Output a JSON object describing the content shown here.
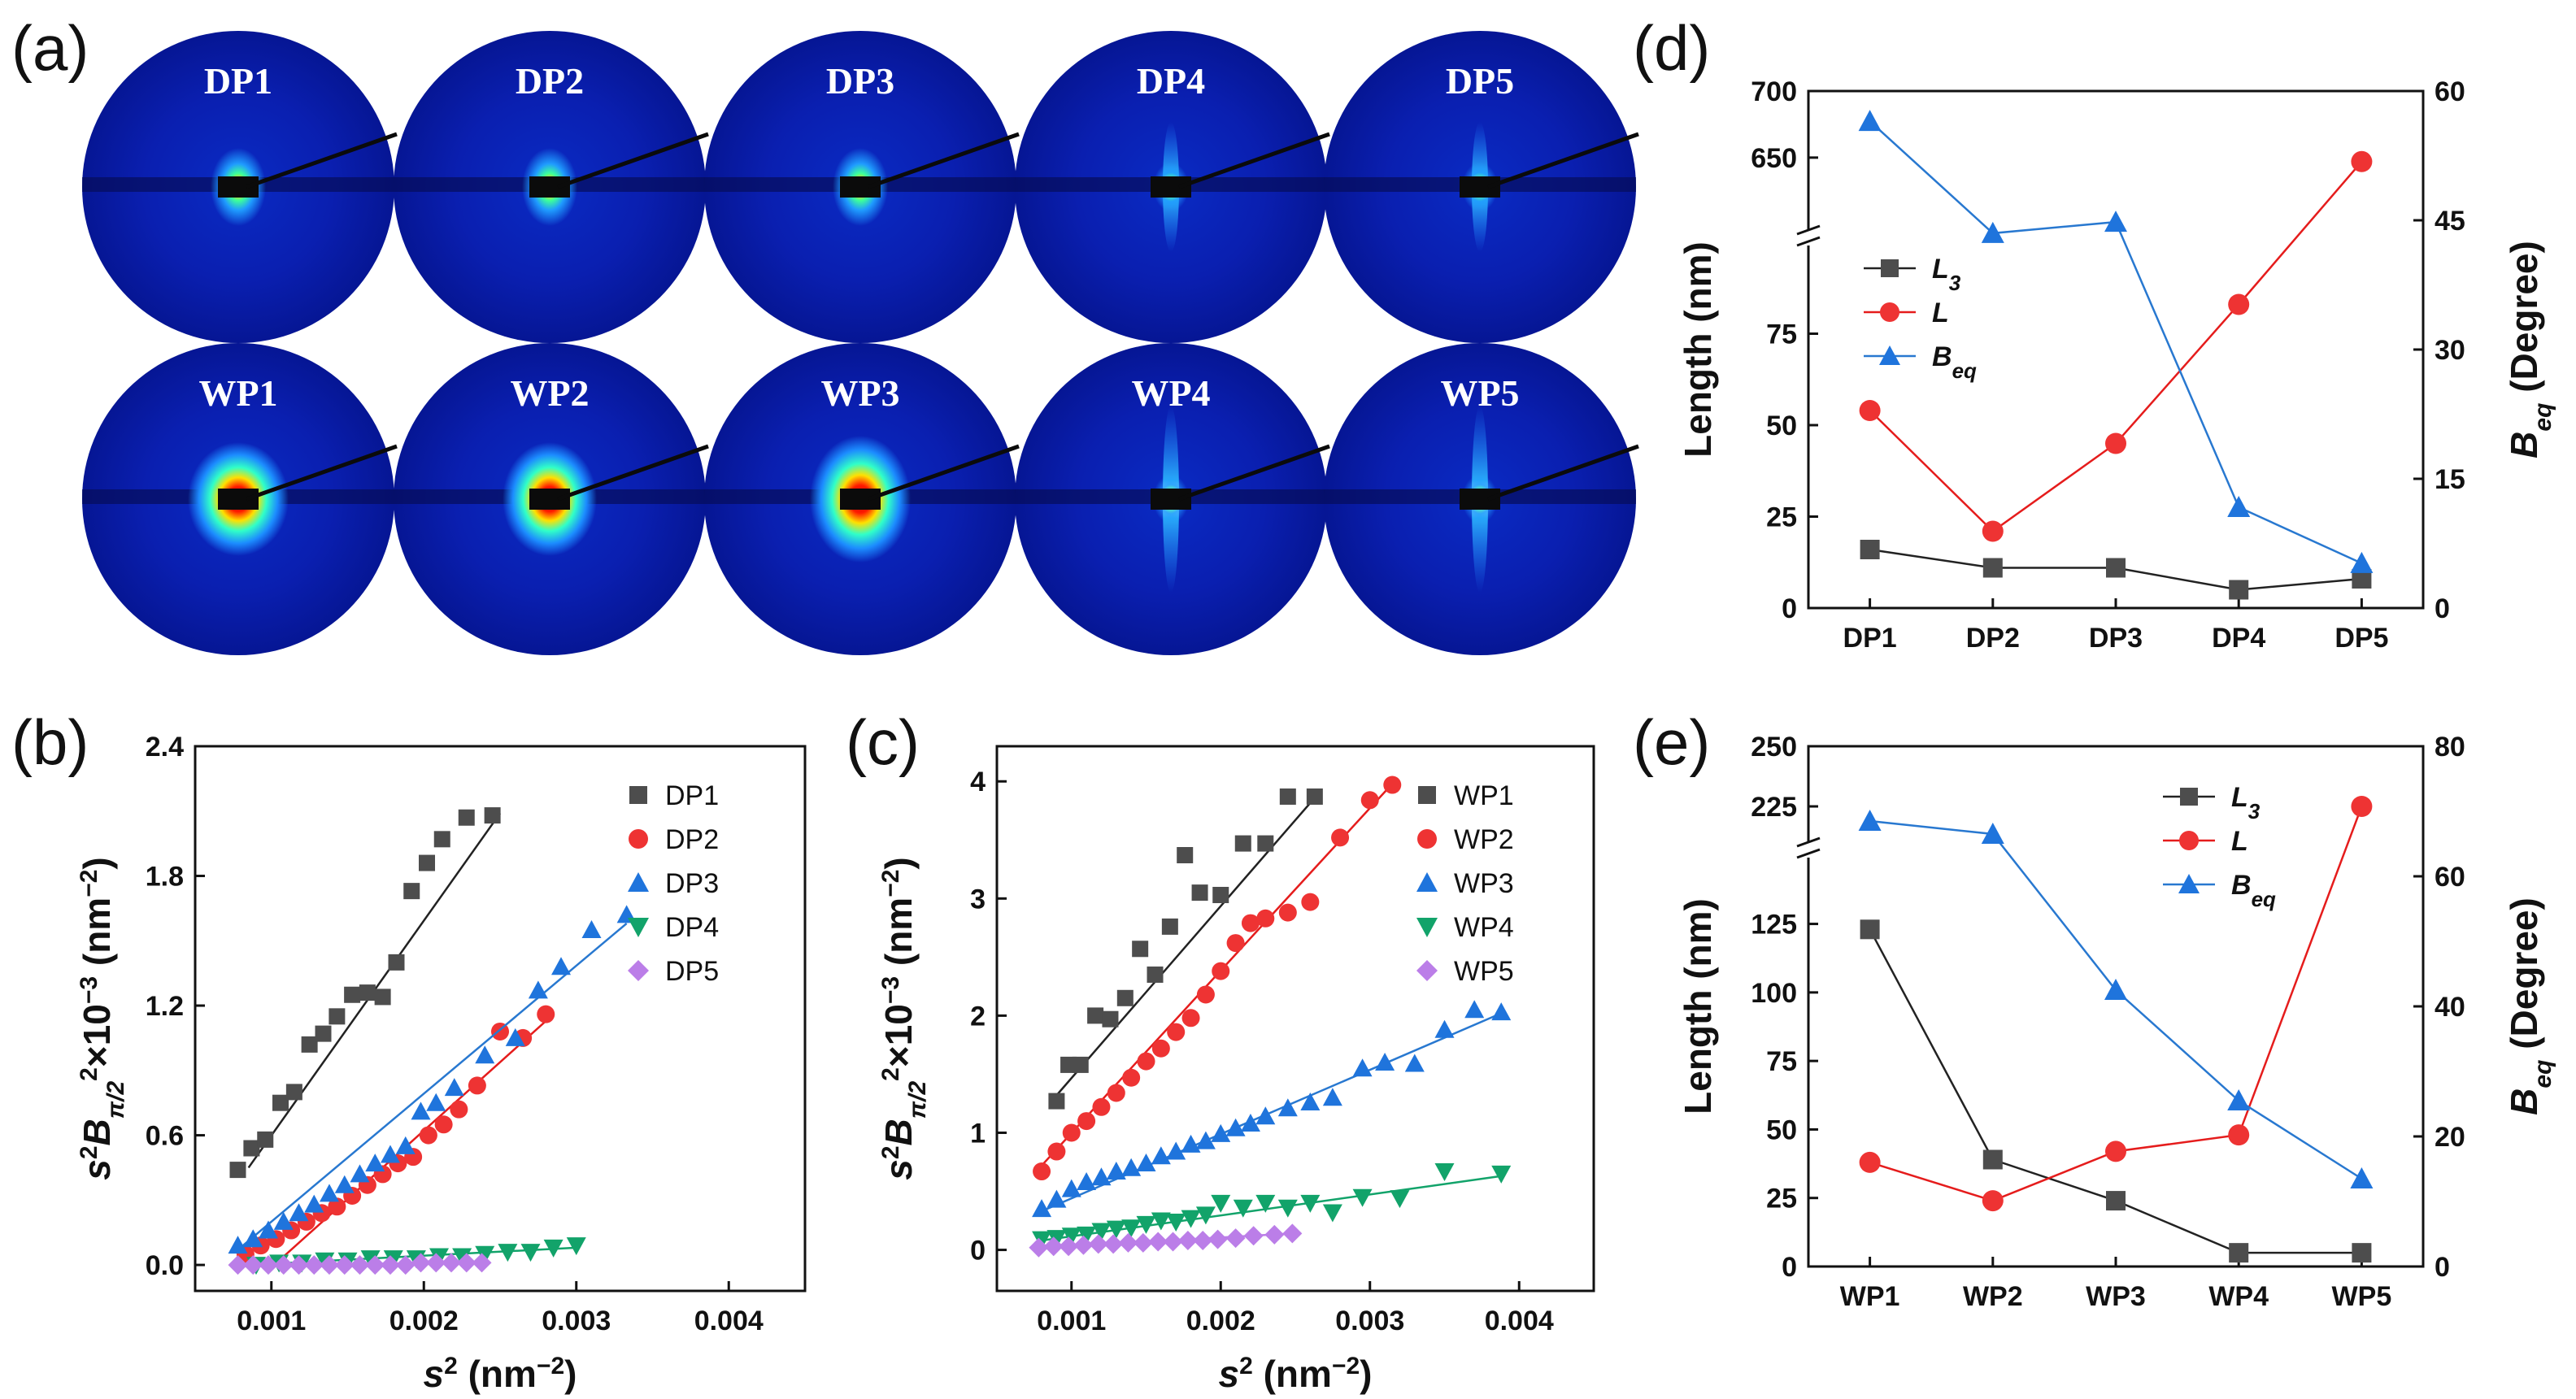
{
  "panel_labels": [
    "(a)",
    "(b)",
    "(c)",
    "(d)",
    "(e)"
  ],
  "colors": {
    "black": "#4d4d4d",
    "red": "#ee3333",
    "blue": "#1f74dc",
    "green": "#12a36a",
    "purple": "#bb7ee8",
    "line_black": "#222222",
    "line_red": "#e51c1c",
    "line_blue": "#2878d0"
  },
  "saxs": {
    "row1": [
      "DP1",
      "DP2",
      "DP3",
      "DP4",
      "DP5"
    ],
    "row2": [
      "WP1",
      "WP2",
      "WP3",
      "WP4",
      "WP5"
    ]
  },
  "chart_data": [
    {
      "id": "b",
      "type": "scatter",
      "xlabel": "s2 (nm-2)",
      "ylabel": "s2Bπ/22×10-3 (nm-2)",
      "xlim": [
        0.0005,
        0.0045
      ],
      "ylim": [
        -0.12,
        2.4
      ],
      "xticks": [
        "0.001",
        "0.002",
        "0.003",
        "0.004"
      ],
      "xtick_values": [
        0.001,
        0.002,
        0.003,
        0.004
      ],
      "yticks": [
        "0.0",
        "0.6",
        "1.2",
        "1.8",
        "2.4"
      ],
      "ytick_values": [
        0.0,
        0.6,
        1.2,
        1.8,
        2.4
      ],
      "legend_position": "top-right",
      "series": [
        {
          "name": "DP1",
          "marker": "square",
          "color": "black",
          "x": [
            0.00078,
            0.00087,
            0.00096,
            0.00106,
            0.00115,
            0.00125,
            0.00134,
            0.00143,
            0.00153,
            0.00163,
            0.00173,
            0.00182,
            0.00192,
            0.00202,
            0.00212,
            0.00228,
            0.00245
          ],
          "y": [
            0.44,
            0.54,
            0.58,
            0.75,
            0.8,
            1.02,
            1.07,
            1.15,
            1.25,
            1.26,
            1.24,
            1.4,
            1.73,
            1.86,
            1.97,
            2.07,
            2.08
          ],
          "fit": [
            [
              0.00085,
              0.45
            ],
            [
              0.0025,
              2.09
            ]
          ]
        },
        {
          "name": "DP2",
          "marker": "circle",
          "color": "red",
          "x": [
            0.00083,
            0.00093,
            0.00103,
            0.00113,
            0.00123,
            0.00133,
            0.00143,
            0.00153,
            0.00163,
            0.00173,
            0.00183,
            0.00193,
            0.00203,
            0.00213,
            0.00223,
            0.00235,
            0.0025,
            0.00265,
            0.0028
          ],
          "y": [
            0.05,
            0.09,
            0.12,
            0.16,
            0.2,
            0.24,
            0.27,
            0.32,
            0.37,
            0.42,
            0.47,
            0.5,
            0.6,
            0.65,
            0.72,
            0.83,
            1.08,
            1.05,
            1.16
          ],
          "fit": [
            [
              0.00105,
              0.02
            ],
            [
              0.00285,
              1.16
            ]
          ]
        },
        {
          "name": "DP3",
          "marker": "triangle",
          "color": "blue",
          "x": [
            0.00078,
            0.00088,
            0.00098,
            0.00108,
            0.00118,
            0.00128,
            0.00138,
            0.00148,
            0.00158,
            0.00168,
            0.00178,
            0.00188,
            0.00198,
            0.00208,
            0.0022,
            0.0024,
            0.0026,
            0.00275,
            0.0029,
            0.0031,
            0.00333
          ],
          "y": [
            0.09,
            0.12,
            0.16,
            0.2,
            0.24,
            0.28,
            0.33,
            0.37,
            0.42,
            0.47,
            0.51,
            0.55,
            0.71,
            0.75,
            0.82,
            0.97,
            1.05,
            1.27,
            1.38,
            1.55,
            1.62
          ],
          "fit": [
            [
              0.00078,
              0.07
            ],
            [
              0.00333,
              1.58
            ]
          ]
        },
        {
          "name": "DP4",
          "marker": "triangle-down",
          "color": "green",
          "x": [
            0.0009,
            0.00105,
            0.0012,
            0.00135,
            0.0015,
            0.00165,
            0.0018,
            0.00195,
            0.0021,
            0.00225,
            0.0024,
            0.00255,
            0.0027,
            0.00285,
            0.003
          ],
          "y": [
            0.0,
            0.01,
            0.01,
            0.02,
            0.02,
            0.03,
            0.03,
            0.03,
            0.04,
            0.04,
            0.05,
            0.06,
            0.06,
            0.08,
            0.09
          ],
          "fit": [
            [
              0.00085,
              0.0
            ],
            [
              0.003,
              0.08
            ]
          ]
        },
        {
          "name": "DP5",
          "marker": "diamond",
          "color": "purple",
          "x": [
            0.00078,
            0.00088,
            0.00098,
            0.00108,
            0.00118,
            0.00128,
            0.00138,
            0.00148,
            0.00158,
            0.00168,
            0.00178,
            0.00188,
            0.00198,
            0.00208,
            0.00218,
            0.00228,
            0.00238
          ],
          "y": [
            0.0,
            0.0,
            0.0,
            0.0,
            0.0,
            0.0,
            0.0,
            0.0,
            0.0,
            0.0,
            0.0,
            0.0,
            0.01,
            0.01,
            0.01,
            0.01,
            0.01
          ],
          "fit": [
            [
              0.00078,
              0.0
            ],
            [
              0.00238,
              0.01
            ]
          ]
        }
      ]
    },
    {
      "id": "c",
      "type": "scatter",
      "xlabel": "s2 (nm-2)",
      "ylabel": "s2Bπ/22×10-3 (nm-2)",
      "xlim": [
        0.0005,
        0.0045
      ],
      "ylim": [
        -0.35,
        4.3
      ],
      "xticks": [
        "0.001",
        "0.002",
        "0.003",
        "0.004"
      ],
      "xtick_values": [
        0.001,
        0.002,
        0.003,
        0.004
      ],
      "yticks": [
        "0",
        "1",
        "2",
        "3",
        "4"
      ],
      "ytick_values": [
        0,
        1,
        2,
        3,
        4
      ],
      "legend_position": "top-right",
      "series": [
        {
          "name": "WP1",
          "marker": "square",
          "color": "black",
          "x": [
            0.0009,
            0.00098,
            0.00106,
            0.00116,
            0.00126,
            0.00136,
            0.00146,
            0.00156,
            0.00166,
            0.00176,
            0.00186,
            0.002,
            0.00215,
            0.0023,
            0.00245,
            0.00263
          ],
          "y": [
            1.27,
            1.58,
            1.58,
            2.0,
            1.97,
            2.15,
            2.57,
            2.35,
            2.76,
            3.37,
            3.05,
            3.03,
            3.47,
            3.47,
            3.87,
            3.87
          ],
          "fit": [
            [
              0.0009,
              1.32
            ],
            [
              0.00263,
              3.86
            ]
          ]
        },
        {
          "name": "WP2",
          "marker": "circle",
          "color": "red",
          "x": [
            0.0008,
            0.0009,
            0.001,
            0.0011,
            0.0012,
            0.0013,
            0.0014,
            0.0015,
            0.0016,
            0.0017,
            0.0018,
            0.0019,
            0.002,
            0.0021,
            0.0022,
            0.0023,
            0.00245,
            0.0026,
            0.0028,
            0.003,
            0.00315
          ],
          "y": [
            0.67,
            0.84,
            1.0,
            1.1,
            1.22,
            1.34,
            1.47,
            1.61,
            1.72,
            1.86,
            1.98,
            2.18,
            2.38,
            2.62,
            2.79,
            2.83,
            2.88,
            2.97,
            3.52,
            3.84,
            3.97
          ],
          "fit": [
            [
              0.0008,
              0.72
            ],
            [
              0.00315,
              3.98
            ]
          ]
        },
        {
          "name": "WP3",
          "marker": "triangle",
          "color": "blue",
          "x": [
            0.0008,
            0.0009,
            0.001,
            0.0011,
            0.0012,
            0.0013,
            0.0014,
            0.0015,
            0.0016,
            0.0017,
            0.0018,
            0.0019,
            0.002,
            0.0021,
            0.0022,
            0.0023,
            0.00245,
            0.0026,
            0.00275,
            0.00295,
            0.0031,
            0.0033,
            0.0035,
            0.0037,
            0.00388
          ],
          "y": [
            0.35,
            0.43,
            0.52,
            0.58,
            0.62,
            0.67,
            0.7,
            0.74,
            0.8,
            0.84,
            0.9,
            0.93,
            0.99,
            1.04,
            1.08,
            1.14,
            1.21,
            1.26,
            1.3,
            1.55,
            1.6,
            1.59,
            1.88,
            2.05,
            2.03
          ],
          "fit": [
            [
              0.0008,
              0.33
            ],
            [
              0.00388,
              2.02
            ]
          ]
        },
        {
          "name": "WP4",
          "marker": "triangle-down",
          "color": "green",
          "x": [
            0.0008,
            0.0009,
            0.001,
            0.0011,
            0.0012,
            0.0013,
            0.0014,
            0.0015,
            0.0016,
            0.0017,
            0.0018,
            0.0019,
            0.002,
            0.00215,
            0.0023,
            0.00245,
            0.0026,
            0.00275,
            0.00295,
            0.0032,
            0.0035,
            0.00388
          ],
          "y": [
            0.09,
            0.1,
            0.12,
            0.13,
            0.16,
            0.18,
            0.19,
            0.22,
            0.25,
            0.24,
            0.27,
            0.3,
            0.4,
            0.36,
            0.4,
            0.36,
            0.4,
            0.32,
            0.45,
            0.44,
            0.67,
            0.65
          ],
          "fit": [
            [
              0.0008,
              0.08
            ],
            [
              0.00388,
              0.63
            ]
          ]
        },
        {
          "name": "WP5",
          "marker": "diamond",
          "color": "purple",
          "x": [
            0.00078,
            0.00088,
            0.00098,
            0.00108,
            0.00118,
            0.00128,
            0.00138,
            0.00148,
            0.00158,
            0.00168,
            0.00178,
            0.00188,
            0.00198,
            0.0021,
            0.00222,
            0.00236,
            0.00248
          ],
          "y": [
            0.02,
            0.03,
            0.03,
            0.04,
            0.05,
            0.05,
            0.06,
            0.06,
            0.07,
            0.07,
            0.08,
            0.08,
            0.09,
            0.1,
            0.12,
            0.13,
            0.14
          ],
          "fit": [
            [
              0.00078,
              0.02
            ],
            [
              0.00248,
              0.14
            ]
          ]
        }
      ]
    },
    {
      "id": "d",
      "type": "line",
      "categories": [
        "DP1",
        "DP2",
        "DP3",
        "DP4",
        "DP5"
      ],
      "ylabel": "Length (nm)",
      "y2label": "Beq (Degree)",
      "ylim_lower": [
        0,
        100
      ],
      "ylim_upper": [
        620,
        700
      ],
      "yticks_left": [
        "0",
        "25",
        "50",
        "75",
        "650",
        "700"
      ],
      "ytick_values_left": [
        0,
        25,
        50,
        75,
        650,
        700
      ],
      "y2lim": [
        0,
        60
      ],
      "yticks_right": [
        "0",
        "15",
        "30",
        "45",
        "60"
      ],
      "ytick_values_right": [
        0,
        15,
        30,
        45,
        60
      ],
      "legend_position": "center-left",
      "series": [
        {
          "name": "L3",
          "axis": "left",
          "marker": "square",
          "color": "black",
          "values": [
            16,
            11,
            11,
            5,
            8
          ]
        },
        {
          "name": "L",
          "axis": "left",
          "marker": "circle",
          "color": "red",
          "values": [
            54,
            21,
            45,
            83,
            647
          ]
        },
        {
          "name": "Beq",
          "axis": "right",
          "marker": "triangle",
          "color": "blue",
          "values": [
            56.5,
            43.5,
            44.8,
            11.7,
            5.2
          ]
        }
      ]
    },
    {
      "id": "e",
      "type": "line",
      "categories": [
        "WP1",
        "WP2",
        "WP3",
        "WP4",
        "WP5"
      ],
      "ylabel": "Length (nm)",
      "y2label": "Beq (Degree)",
      "ylim_lower": [
        0,
        140
      ],
      "ylim_upper": [
        200,
        250
      ],
      "yticks_left": [
        "0",
        "25",
        "50",
        "75",
        "100",
        "125",
        "225",
        "250"
      ],
      "ytick_values_left": [
        0,
        25,
        50,
        75,
        100,
        125,
        225,
        250
      ],
      "y2lim": [
        0,
        80
      ],
      "yticks_right": [
        "0",
        "20",
        "40",
        "60",
        "80"
      ],
      "ytick_values_right": [
        0,
        20,
        40,
        60,
        80
      ],
      "legend_position": "top-right",
      "series": [
        {
          "name": "L3",
          "axis": "left",
          "marker": "square",
          "color": "black",
          "values": [
            123,
            39,
            24,
            5,
            5
          ]
        },
        {
          "name": "L",
          "axis": "left",
          "marker": "circle",
          "color": "red",
          "values": [
            38,
            24,
            42,
            48,
            225
          ]
        },
        {
          "name": "Beq",
          "axis": "right",
          "marker": "triangle",
          "color": "blue",
          "values": [
            68.5,
            66.5,
            42.5,
            25.5,
            13.5
          ]
        }
      ]
    }
  ]
}
